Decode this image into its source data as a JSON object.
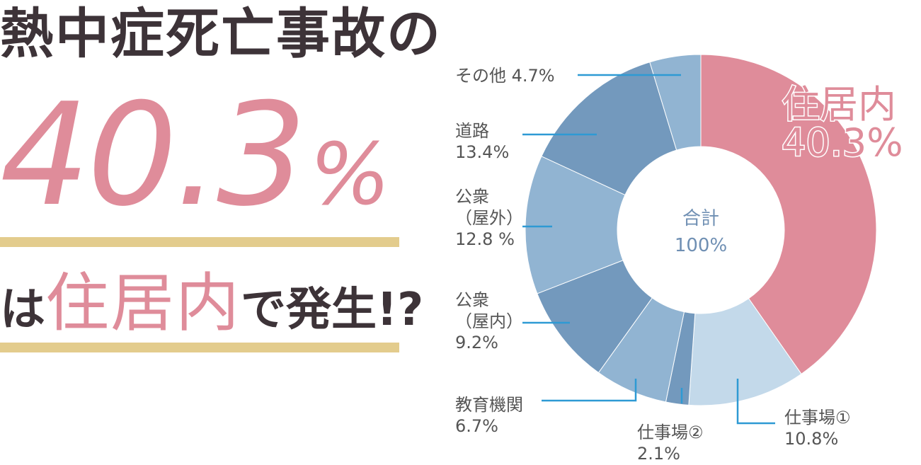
{
  "headline": {
    "line1": "熱中症死亡事故の",
    "big_value": "40.3",
    "big_unit": "%",
    "line3_pre": "は",
    "line3_highlight": "住居内",
    "line3_post": "で発生!?"
  },
  "colors": {
    "pink": "#df8c9a",
    "gold": "#e3cc8d",
    "dark_text": "#3d3338",
    "leader": "#2e9ad4",
    "blue_dark": "#7399bd",
    "blue_mid": "#91b4d2",
    "blue_light": "#c3d9ea"
  },
  "chart_data": {
    "type": "pie",
    "donut": true,
    "center_label": [
      "合計",
      "100%"
    ],
    "start": "top",
    "direction": "clockwise",
    "slices": [
      {
        "label": [
          "住居内",
          "40.3%"
        ],
        "value": 40.3,
        "color": "#df8c9a"
      },
      {
        "label": [
          "仕事場①",
          "10.8%"
        ],
        "value": 10.8,
        "color": "#c3d9ea"
      },
      {
        "label": [
          "仕事場②",
          "2.1%"
        ],
        "value": 2.1,
        "color": "#7399bd"
      },
      {
        "label": [
          "教育機関",
          "6.7%"
        ],
        "value": 6.7,
        "color": "#91b4d2"
      },
      {
        "label": [
          "公衆",
          "（屋内）",
          "9.2%"
        ],
        "value": 9.2,
        "color": "#7399bd"
      },
      {
        "label": [
          "公衆",
          "（屋外）",
          "12.8 %"
        ],
        "value": 12.8,
        "color": "#91b4d2"
      },
      {
        "label": [
          "道路",
          "13.4%"
        ],
        "value": 13.4,
        "color": "#7399bd"
      },
      {
        "label": [
          "その他 4.7%"
        ],
        "value": 4.7,
        "color": "#91b4d2"
      }
    ]
  }
}
